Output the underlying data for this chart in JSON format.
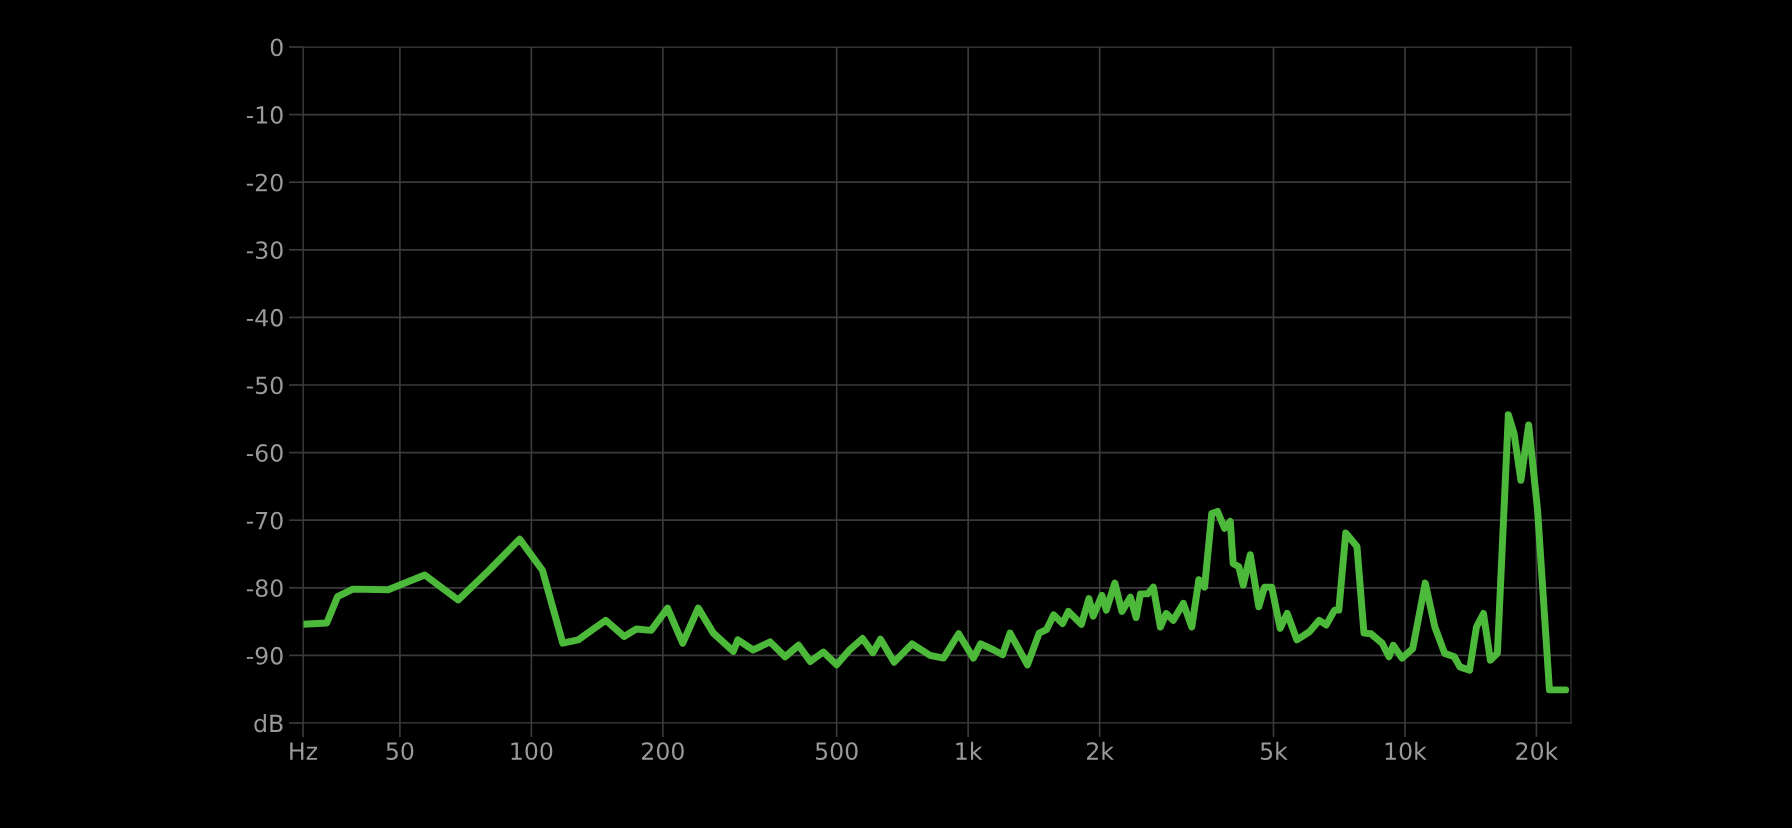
{
  "chart_data": {
    "type": "line",
    "log": "x",
    "grid": true,
    "legend": false,
    "marker": "none",
    "line_style": "solid",
    "xlim": [
      30,
      24000
    ],
    "ylim": [
      -100,
      0
    ],
    "xticks": [
      {
        "value": 30,
        "label": "Hz"
      },
      50,
      100,
      200,
      500,
      {
        "value": 1000,
        "label": "1k"
      },
      {
        "value": 2000,
        "label": "2k"
      },
      {
        "value": 5000,
        "label": "5k"
      },
      {
        "value": 10000,
        "label": "10k"
      },
      {
        "value": 20000,
        "label": "20k"
      }
    ],
    "yticks": [
      0,
      -10,
      -20,
      -30,
      -40,
      -50,
      -60,
      -70,
      -80,
      -90,
      {
        "value": -100,
        "label": "dB"
      }
    ],
    "series": [
      {
        "color": "#4db93a",
        "x": [
          30,
          34,
          36,
          39,
          47,
          57,
          68,
          80,
          94,
          106,
          118,
          128,
          148,
          163,
          174,
          188,
          205,
          222,
          241,
          261,
          290,
          297,
          322,
          352,
          381,
          409,
          435,
          466,
          500,
          533,
          573,
          605,
          630,
          677,
          744,
          818,
          878,
          951,
          1028,
          1068,
          1145,
          1199,
          1247,
          1367,
          1454,
          1511,
          1570,
          1645,
          1696,
          1817,
          1890,
          1933,
          2024,
          2071,
          2167,
          2249,
          2352,
          2424,
          2480,
          2576,
          2654,
          2755,
          2841,
          2948,
          3109,
          3251,
          3374,
          3478,
          3612,
          3722,
          3865,
          3983,
          4043,
          4167,
          4263,
          4424,
          4628,
          4769,
          4954,
          5180,
          5376,
          5658,
          6045,
          6364,
          6602,
          6901,
          7057,
          7320,
          7765,
          8057,
          8357,
          8870,
          9195,
          9402,
          9848,
          10420,
          11130,
          11710,
          12330,
          12970,
          13360,
          14060,
          14580,
          15130,
          15690,
          16280,
          17250,
          17770,
          18430,
          19200,
          20120,
          21420,
          23330
        ],
        "values": [
          -85.4,
          -85.2,
          -81.3,
          -80.2,
          -80.3,
          -78.1,
          -81.8,
          -77.4,
          -72.8,
          -77.4,
          -88.2,
          -87.7,
          -84.8,
          -87.2,
          -86.1,
          -86.3,
          -83.0,
          -88.2,
          -83.0,
          -86.7,
          -89.4,
          -87.7,
          -89.2,
          -88.0,
          -90.2,
          -88.5,
          -90.9,
          -89.5,
          -91.4,
          -89.3,
          -87.5,
          -89.6,
          -87.6,
          -91.0,
          -88.3,
          -90.0,
          -90.4,
          -86.8,
          -90.4,
          -88.3,
          -89.2,
          -89.9,
          -86.7,
          -91.4,
          -86.7,
          -86.2,
          -84.0,
          -85.3,
          -83.5,
          -85.4,
          -81.6,
          -84.2,
          -81.1,
          -83.3,
          -79.3,
          -83.5,
          -81.4,
          -84.4,
          -80.9,
          -80.9,
          -79.9,
          -85.8,
          -83.8,
          -84.8,
          -82.3,
          -85.8,
          -78.8,
          -79.9,
          -69.0,
          -68.7,
          -71.2,
          -70.2,
          -76.4,
          -76.9,
          -79.6,
          -75.1,
          -82.8,
          -79.9,
          -79.9,
          -86.0,
          -83.8,
          -87.7,
          -86.5,
          -84.8,
          -85.5,
          -83.3,
          -83.3,
          -71.9,
          -73.9,
          -86.7,
          -86.8,
          -88.2,
          -90.2,
          -88.5,
          -90.4,
          -89.0,
          -79.3,
          -85.8,
          -89.7,
          -90.2,
          -91.7,
          -92.2,
          -85.8,
          -83.8,
          -90.7,
          -89.7,
          -54.4,
          -57.1,
          -64.1,
          -55.9,
          -68.5,
          -95.1,
          -95.1
        ]
      }
    ]
  }
}
